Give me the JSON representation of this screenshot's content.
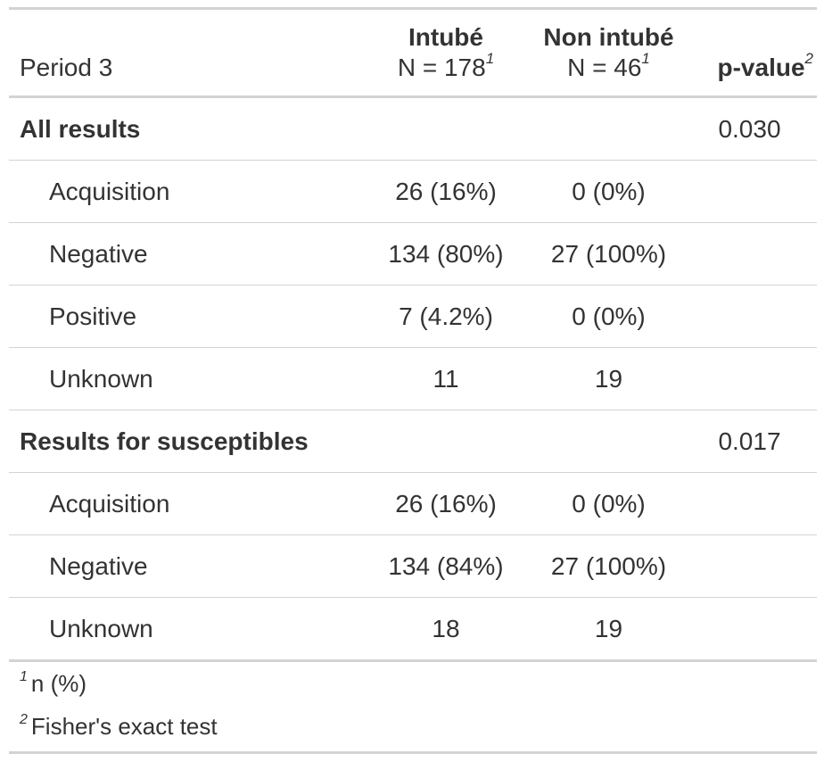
{
  "header": {
    "label": "Period 3",
    "col1_title": "Intubé",
    "col1_n": "N = 178",
    "col1_mark": "1",
    "col2_title": "Non intubé",
    "col2_n": "N = 46",
    "col2_mark": "1",
    "pvalue_title": "p-value",
    "pvalue_mark": "2"
  },
  "groups": [
    {
      "label": "All results",
      "pvalue": "0.030",
      "rows": [
        {
          "label": "Acquisition",
          "c1": "26 (16%)",
          "c2": "0 (0%)"
        },
        {
          "label": "Negative",
          "c1": "134 (80%)",
          "c2": "27 (100%)"
        },
        {
          "label": "Positive",
          "c1": "7 (4.2%)",
          "c2": "0 (0%)"
        },
        {
          "label": "Unknown",
          "c1": "11",
          "c2": "19"
        }
      ]
    },
    {
      "label": "Results for susceptibles",
      "pvalue": "0.017",
      "rows": [
        {
          "label": "Acquisition",
          "c1": "26 (16%)",
          "c2": "0 (0%)"
        },
        {
          "label": "Negative",
          "c1": "134 (84%)",
          "c2": "27 (100%)"
        },
        {
          "label": "Unknown",
          "c1": "18",
          "c2": "19"
        }
      ]
    }
  ],
  "footnotes": [
    {
      "mark": "1",
      "text": "n (%)"
    },
    {
      "mark": "2",
      "text": "Fisher's exact test"
    }
  ],
  "colors": {
    "text": "#333333",
    "rule": "#d3d3d3"
  }
}
